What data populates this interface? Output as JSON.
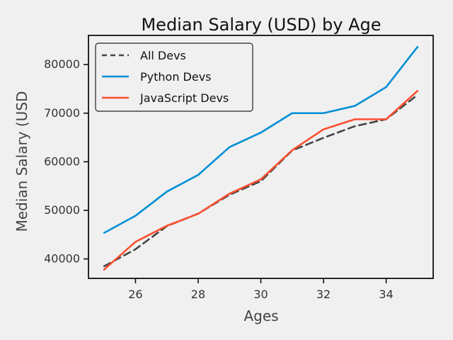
{
  "chart_data": {
    "type": "line",
    "title": "Median Salary (USD) by Age",
    "xlabel": "Ages",
    "ylabel": "Median Salary (USD",
    "x": [
      25,
      26,
      27,
      28,
      29,
      30,
      31,
      32,
      33,
      34,
      35
    ],
    "xlim": [
      24.5,
      35.5
    ],
    "ylim": [
      36000,
      86000
    ],
    "xticks": [
      26,
      28,
      30,
      32,
      34
    ],
    "xtick_labels": [
      "26",
      "28",
      "30",
      "32",
      "34"
    ],
    "yticks": [
      40000,
      50000,
      60000,
      70000,
      80000
    ],
    "ytick_labels": [
      "40000",
      "50000",
      "60000",
      "70000",
      "80000"
    ],
    "grid": false,
    "legend_position": "top-left",
    "series": [
      {
        "name": "All Devs",
        "values": [
          38496,
          42000,
          46752,
          49320,
          53200,
          56000,
          62316,
          64928,
          67317,
          68748,
          73752
        ],
        "color": "#444444",
        "dash": true
      },
      {
        "name": "Python Devs",
        "values": [
          45372,
          48876,
          53850,
          57287,
          63016,
          65998,
          70003,
          70000,
          71496,
          75370,
          83640
        ],
        "color": "#008fd5",
        "dash": false
      },
      {
        "name": "JavaScript Devs",
        "values": [
          37810,
          43515,
          46823,
          49293,
          53437,
          56373,
          62375,
          66674,
          68745,
          68746,
          74583
        ],
        "color": "#fc4f30",
        "dash": false
      }
    ]
  }
}
